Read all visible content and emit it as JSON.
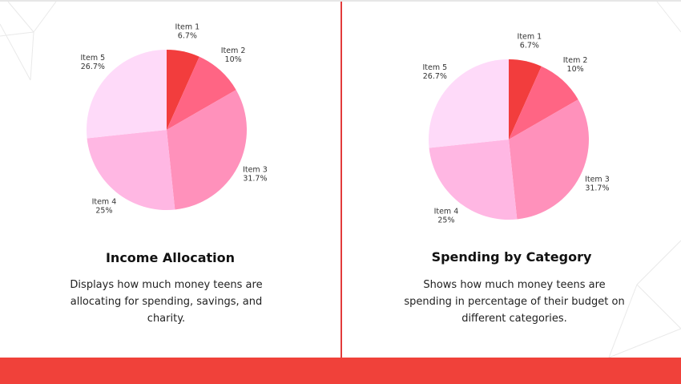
{
  "colors": {
    "accent": "#f0413a",
    "divider": "#e23b3b",
    "slices": [
      "#f23d3d",
      "#ff6584",
      "#ff91bb",
      "#ffb7e3",
      "#fedaf9"
    ]
  },
  "chart_data": [
    {
      "type": "pie",
      "title": "Income Allocation",
      "description": "Displays how much money teens are allocating for spending, savings, and charity.",
      "categories": [
        "Item 1",
        "Item 2",
        "Item 3",
        "Item 4",
        "Item 5"
      ],
      "values": [
        6.7,
        10,
        31.7,
        25,
        26.7
      ],
      "value_labels": [
        "6.7%",
        "10%",
        "31.7%",
        "25%",
        "26.7%"
      ]
    },
    {
      "type": "pie",
      "title": "Spending by Category",
      "description": "Shows how much money teens are spending in percentage of their budget on different categories.",
      "categories": [
        "Item 1",
        "Item 2",
        "Item 3",
        "Item 4",
        "Item 5"
      ],
      "values": [
        6.7,
        10,
        31.7,
        25,
        26.7
      ],
      "value_labels": [
        "6.7%",
        "10%",
        "31.7%",
        "25%",
        "26.7%"
      ]
    }
  ]
}
